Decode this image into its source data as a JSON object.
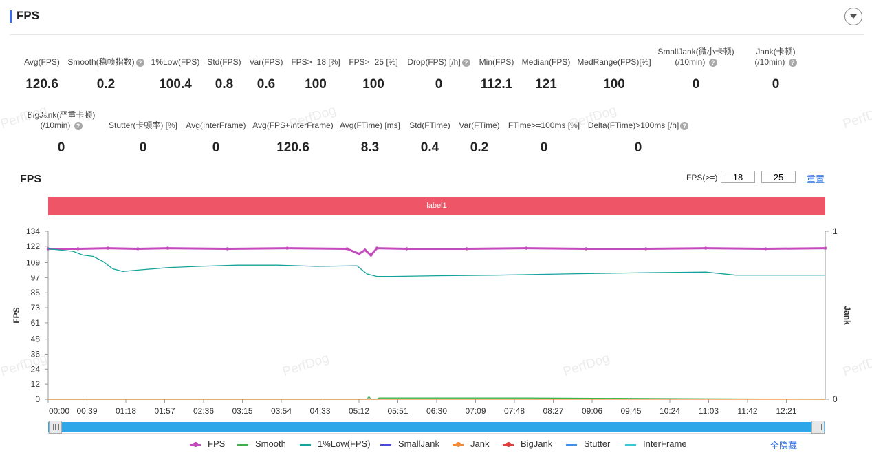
{
  "header": {
    "title": "FPS"
  },
  "metrics_row1": [
    {
      "label": "Avg(FPS)",
      "value": "120.6",
      "help": false
    },
    {
      "label": "Smooth(稳帧指数)",
      "value": "0.2",
      "help": true
    },
    {
      "label": "1%Low(FPS)",
      "value": "100.4",
      "help": false
    },
    {
      "label": "Std(FPS)",
      "value": "0.8",
      "help": false
    },
    {
      "label": "Var(FPS)",
      "value": "0.6",
      "help": false
    },
    {
      "label": "FPS>=18 [%]",
      "value": "100",
      "help": false
    },
    {
      "label": "FPS>=25 [%]",
      "value": "100",
      "help": false
    },
    {
      "label": "Drop(FPS) [/h]",
      "value": "0",
      "help": true
    },
    {
      "label": "Min(FPS)",
      "value": "112.1",
      "help": false
    },
    {
      "label": "Median(FPS)",
      "value": "121",
      "help": false
    },
    {
      "label": "MedRange(FPS)[%]",
      "value": "100",
      "help": false
    },
    {
      "label": "SmallJank(微小卡顿)",
      "label2": "(/10min)",
      "value": "0",
      "help": true
    },
    {
      "label": "Jank(卡顿)",
      "label2": "(/10min)",
      "value": "0",
      "help": true
    }
  ],
  "metrics_row2": [
    {
      "label": "BigJank(严重卡顿)",
      "label2": "(/10min)",
      "value": "0",
      "help": true
    },
    {
      "label": "Stutter(卡顿率) [%]",
      "value": "0",
      "help": false
    },
    {
      "label": "Avg(InterFrame)",
      "value": "0",
      "help": false
    },
    {
      "label": "Avg(FPS+InterFrame)",
      "value": "120.6",
      "help": false
    },
    {
      "label": "Avg(FTime) [ms]",
      "value": "8.3",
      "help": false
    },
    {
      "label": "Std(FTime)",
      "value": "0.4",
      "help": false
    },
    {
      "label": "Var(FTime)",
      "value": "0.2",
      "help": false
    },
    {
      "label": "FTime>=100ms [%]",
      "value": "0",
      "help": false
    },
    {
      "label": "Delta(FTime)>100ms [/h]",
      "value": "0",
      "help": true
    }
  ],
  "watermark_text": "PerfDog",
  "chart_panel": {
    "title": "FPS",
    "threshold_label": "FPS(>=)",
    "threshold_values": [
      "18",
      "25"
    ],
    "reset_label": "重置",
    "band_label": "label1",
    "hide_all_label": "全隐藏"
  },
  "legend": [
    {
      "name": "FPS",
      "color": "#c44bbd",
      "marker": "dot"
    },
    {
      "name": "Smooth",
      "color": "#3cb34a",
      "marker": "line"
    },
    {
      "name": "1%Low(FPS)",
      "color": "#14a39a",
      "marker": "line"
    },
    {
      "name": "SmallJank",
      "color": "#4a4ad4",
      "marker": "line"
    },
    {
      "name": "Jank",
      "color": "#f08a3c",
      "marker": "dot"
    },
    {
      "name": "BigJank",
      "color": "#e03c3c",
      "marker": "dot"
    },
    {
      "name": "Stutter",
      "color": "#3a8fe8",
      "marker": "line"
    },
    {
      "name": "InterFrame",
      "color": "#33c9d6",
      "marker": "line"
    }
  ],
  "chart_data": {
    "type": "line",
    "ylabel": "FPS",
    "y2label": "Jank",
    "y_ticks": [
      0,
      12,
      24,
      36,
      48,
      61,
      73,
      85,
      97,
      109,
      122,
      134
    ],
    "ylim": [
      0,
      134
    ],
    "y2_ticks": [
      0,
      1
    ],
    "x_ticks": [
      "00:00",
      "00:39",
      "01:18",
      "01:57",
      "02:36",
      "03:15",
      "03:54",
      "04:33",
      "05:12",
      "05:51",
      "06:30",
      "07:09",
      "07:48",
      "08:27",
      "09:06",
      "09:45",
      "10:24",
      "11:03",
      "11:42",
      "12:21"
    ],
    "x_range_seconds": [
      0,
      780
    ],
    "series": [
      {
        "name": "FPS",
        "x": [
          0,
          30,
          60,
          90,
          120,
          180,
          240,
          300,
          312,
          318,
          324,
          330,
          360,
          420,
          480,
          540,
          600,
          660,
          720,
          780
        ],
        "y": [
          120,
          120,
          120.5,
          120,
          120.5,
          120,
          120.5,
          120,
          116,
          119,
          115,
          120.5,
          120,
          120,
          120.5,
          120,
          120,
          120.5,
          120,
          120.5
        ]
      },
      {
        "name": "1%Low(FPS)",
        "x": [
          0,
          25,
          35,
          45,
          55,
          65,
          75,
          90,
          120,
          150,
          190,
          230,
          270,
          310,
          320,
          330,
          345,
          390,
          450,
          520,
          600,
          660,
          690,
          720,
          780
        ],
        "y": [
          120,
          118,
          115,
          114,
          110,
          104,
          102,
          103,
          105,
          106,
          107,
          107,
          106,
          106.5,
          100,
          98,
          98,
          98.5,
          99,
          100,
          101,
          101.5,
          99,
          99,
          99
        ]
      },
      {
        "name": "Smooth",
        "x": [
          0,
          320,
          322,
          324,
          330,
          332,
          400,
          480,
          780
        ],
        "y": [
          0,
          0,
          2,
          0,
          0,
          1,
          1,
          1,
          0
        ]
      },
      {
        "name": "Jank",
        "x": [
          0,
          780
        ],
        "y": [
          0,
          0
        ]
      }
    ],
    "grid": false,
    "legend_position": "bottom"
  }
}
